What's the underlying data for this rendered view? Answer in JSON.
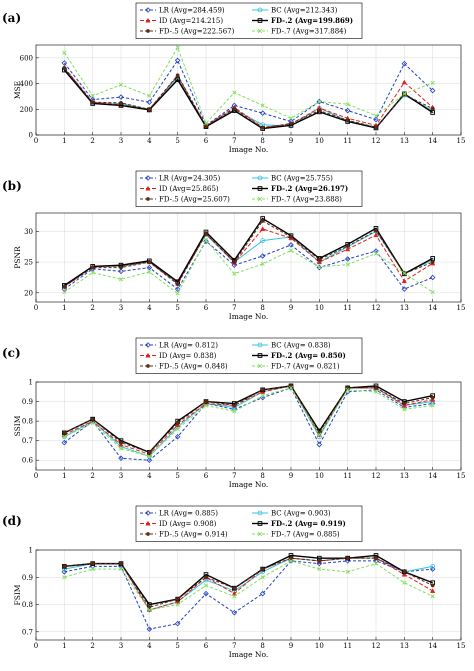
{
  "chart_data": [
    {
      "type": "line",
      "panel": "(a)",
      "ylabel": "MSE",
      "xlabel": "Image No.",
      "xlim": [
        0,
        15
      ],
      "ylim": [
        0,
        700
      ],
      "xticks": [
        0,
        1,
        2,
        3,
        4,
        5,
        6,
        7,
        8,
        9,
        10,
        11,
        12,
        13,
        14,
        15
      ],
      "yticks": [
        0,
        200,
        400,
        600
      ],
      "x": [
        1,
        2,
        3,
        4,
        5,
        6,
        7,
        8,
        9,
        10,
        11,
        12,
        13,
        14
      ],
      "series": [
        {
          "name": "LR",
          "legend": "LR (Avg=284.459)",
          "color": "#1f3fc4",
          "dash": "3,2",
          "marker": "diamond",
          "values": [
            560,
            275,
            295,
            255,
            580,
            75,
            230,
            170,
            105,
            260,
            190,
            120,
            555,
            345
          ]
        },
        {
          "name": "BC",
          "legend": "BC (Avg=212.343)",
          "color": "#33c4e0",
          "dash": "",
          "marker": "circle",
          "values": [
            520,
            250,
            245,
            200,
            450,
            65,
            200,
            80,
            70,
            210,
            110,
            60,
            310,
            190
          ]
        },
        {
          "name": "ID",
          "legend": "ID (Avg=214.215)",
          "color": "#e02020",
          "dash": "4,2",
          "marker": "triangle",
          "values": [
            525,
            255,
            235,
            200,
            460,
            70,
            215,
            60,
            85,
            210,
            130,
            75,
            410,
            215
          ]
        },
        {
          "name": "FD-.2",
          "legend": "FD-.2 (Avg=199.869)",
          "bold": true,
          "color": "#000000",
          "dash": "",
          "marker": "square",
          "values": [
            505,
            245,
            230,
            195,
            430,
            65,
            190,
            50,
            75,
            180,
            105,
            55,
            320,
            175
          ]
        },
        {
          "name": "FD-.5",
          "legend": "FD-.5 (Avg=222.567)",
          "color": "#5a2a12",
          "dash": "3,2",
          "marker": "star",
          "values": [
            520,
            255,
            250,
            200,
            465,
            70,
            205,
            55,
            90,
            190,
            115,
            60,
            315,
            205
          ]
        },
        {
          "name": "FD-.7",
          "legend": "FD-.7 (Avg=317.884)",
          "color": "#7ee05a",
          "dash": "3,2",
          "marker": "x",
          "values": [
            640,
            305,
            390,
            305,
            680,
            90,
            330,
            230,
            130,
            260,
            240,
            150,
            320,
            405
          ]
        }
      ]
    },
    {
      "type": "line",
      "panel": "(b)",
      "ylabel": "PSNR",
      "xlabel": "Image No.",
      "xlim": [
        0,
        15
      ],
      "ylim": [
        18.5,
        33
      ],
      "xticks": [
        0,
        1,
        2,
        3,
        4,
        5,
        6,
        7,
        8,
        9,
        10,
        11,
        12,
        13,
        14,
        15
      ],
      "yticks": [
        20,
        25,
        30
      ],
      "x": [
        1,
        2,
        3,
        4,
        5,
        6,
        7,
        8,
        9,
        10,
        11,
        12,
        13,
        14
      ],
      "series": [
        {
          "name": "LR",
          "legend": "LR (Avg=24.305)",
          "color": "#1f3fc4",
          "dash": "3,2",
          "marker": "diamond",
          "values": [
            20.6,
            23.9,
            23.5,
            24.1,
            20.6,
            28.4,
            24.5,
            26.0,
            27.8,
            24.1,
            25.5,
            26.8,
            20.6,
            22.5
          ]
        },
        {
          "name": "BC",
          "legend": "BC (Avg=25.755)",
          "color": "#33c4e0",
          "dash": "",
          "marker": "circle",
          "values": [
            21.1,
            24.3,
            24.3,
            25.0,
            21.6,
            29.5,
            25.0,
            28.5,
            29.1,
            25.0,
            27.5,
            30.0,
            23.2,
            25.3
          ]
        },
        {
          "name": "ID",
          "legend": "ID (Avg=25.865)",
          "color": "#e02020",
          "dash": "4,2",
          "marker": "triangle",
          "values": [
            21.0,
            24.2,
            24.4,
            25.0,
            21.5,
            29.6,
            24.9,
            30.4,
            28.9,
            25.0,
            27.1,
            29.4,
            21.9,
            24.8
          ]
        },
        {
          "name": "FD-.2",
          "legend": "FD-.2 (Avg=26.197)",
          "bold": true,
          "color": "#000000",
          "dash": "",
          "marker": "square",
          "values": [
            21.2,
            24.3,
            24.5,
            25.2,
            21.8,
            29.9,
            25.3,
            32.1,
            29.3,
            25.6,
            27.9,
            30.5,
            23.1,
            25.6
          ]
        },
        {
          "name": "FD-.5",
          "legend": "FD-.5 (Avg=25.607)",
          "color": "#5a2a12",
          "dash": "3,2",
          "marker": "star",
          "values": [
            21.0,
            24.1,
            24.1,
            25.0,
            21.4,
            29.6,
            25.0,
            31.7,
            29.1,
            25.4,
            27.6,
            30.1,
            23.1,
            25.0
          ]
        },
        {
          "name": "FD-.7",
          "legend": "FD-.7 (Avg=23.888)",
          "color": "#7ee05a",
          "dash": "3,2",
          "marker": "x",
          "values": [
            20.1,
            23.3,
            22.2,
            23.4,
            19.9,
            28.6,
            23.1,
            24.7,
            26.9,
            24.2,
            24.6,
            26.4,
            23.2,
            20.1
          ]
        }
      ]
    },
    {
      "type": "line",
      "panel": "(c)",
      "ylabel": "SSIM",
      "xlabel": "Image No.",
      "xlim": [
        0,
        15
      ],
      "ylim": [
        0.55,
        1.0
      ],
      "xticks": [
        0,
        1,
        2,
        3,
        4,
        5,
        6,
        7,
        8,
        9,
        10,
        11,
        12,
        13,
        14,
        15
      ],
      "yticks": [
        0.6,
        0.7,
        0.8,
        0.9,
        1
      ],
      "x": [
        1,
        2,
        3,
        4,
        5,
        6,
        7,
        8,
        9,
        10,
        11,
        12,
        13,
        14
      ],
      "series": [
        {
          "name": "LR",
          "legend": "LR (Avg= 0.812)",
          "color": "#1f3fc4",
          "dash": "3,2",
          "marker": "diamond",
          "values": [
            0.69,
            0.8,
            0.61,
            0.6,
            0.72,
            0.89,
            0.86,
            0.92,
            0.97,
            0.68,
            0.95,
            0.96,
            0.87,
            0.89
          ]
        },
        {
          "name": "BC",
          "legend": "BC (Avg= 0.838)",
          "color": "#33c4e0",
          "dash": "",
          "marker": "circle",
          "values": [
            0.72,
            0.8,
            0.67,
            0.62,
            0.77,
            0.89,
            0.87,
            0.95,
            0.98,
            0.72,
            0.97,
            0.97,
            0.88,
            0.9
          ]
        },
        {
          "name": "ID",
          "legend": "ID (Avg= 0.838)",
          "color": "#e02020",
          "dash": "4,2",
          "marker": "triangle",
          "values": [
            0.73,
            0.8,
            0.68,
            0.63,
            0.78,
            0.89,
            0.88,
            0.95,
            0.98,
            0.73,
            0.97,
            0.97,
            0.88,
            0.91
          ]
        },
        {
          "name": "FD-.2",
          "legend": "FD-.2 (Avg= 0.850)",
          "bold": true,
          "color": "#000000",
          "dash": "",
          "marker": "square",
          "values": [
            0.74,
            0.81,
            0.7,
            0.64,
            0.8,
            0.9,
            0.89,
            0.96,
            0.98,
            0.75,
            0.97,
            0.98,
            0.9,
            0.93
          ]
        },
        {
          "name": "FD-.5",
          "legend": "FD-.5 (Avg= 0.848)",
          "color": "#5a2a12",
          "dash": "3,2",
          "marker": "star",
          "values": [
            0.74,
            0.81,
            0.69,
            0.64,
            0.79,
            0.9,
            0.88,
            0.96,
            0.98,
            0.74,
            0.97,
            0.97,
            0.89,
            0.92
          ]
        },
        {
          "name": "FD-.7",
          "legend": "FD-.7 (Avg= 0.821)",
          "color": "#7ee05a",
          "dash": "3,2",
          "marker": "x",
          "values": [
            0.72,
            0.79,
            0.66,
            0.62,
            0.76,
            0.88,
            0.85,
            0.93,
            0.97,
            0.73,
            0.96,
            0.95,
            0.86,
            0.88
          ]
        }
      ]
    },
    {
      "type": "line",
      "panel": "(d)",
      "ylabel": "FSIM",
      "xlabel": "Image No.",
      "xlim": [
        0,
        15
      ],
      "ylim": [
        0.67,
        1.0
      ],
      "xticks": [
        0,
        1,
        2,
        3,
        4,
        5,
        6,
        7,
        8,
        9,
        10,
        11,
        12,
        13,
        14,
        15
      ],
      "yticks": [
        0.7,
        0.8,
        0.9,
        1
      ],
      "x": [
        1,
        2,
        3,
        4,
        5,
        6,
        7,
        8,
        9,
        10,
        11,
        12,
        13,
        14
      ],
      "series": [
        {
          "name": "LR",
          "legend": "LR (Avg= 0.885)",
          "color": "#1f3fc4",
          "dash": "3,2",
          "marker": "diamond",
          "values": [
            0.92,
            0.94,
            0.94,
            0.71,
            0.73,
            0.84,
            0.77,
            0.84,
            0.96,
            0.95,
            0.96,
            0.96,
            0.92,
            0.93
          ]
        },
        {
          "name": "BC",
          "legend": "BC (Avg= 0.903)",
          "color": "#33c4e0",
          "dash": "",
          "marker": "circle",
          "values": [
            0.93,
            0.95,
            0.95,
            0.78,
            0.81,
            0.89,
            0.85,
            0.92,
            0.97,
            0.96,
            0.97,
            0.97,
            0.92,
            0.94
          ]
        },
        {
          "name": "ID",
          "legend": "ID (Avg= 0.908)",
          "color": "#e02020",
          "dash": "4,2",
          "marker": "triangle",
          "values": [
            0.94,
            0.95,
            0.95,
            0.78,
            0.81,
            0.9,
            0.84,
            0.93,
            0.97,
            0.96,
            0.97,
            0.97,
            0.91,
            0.85
          ]
        },
        {
          "name": "FD-.2",
          "legend": "FD-.2 (Avg= 0.919)",
          "bold": true,
          "color": "#000000",
          "dash": "",
          "marker": "square",
          "values": [
            0.94,
            0.95,
            0.95,
            0.8,
            0.82,
            0.91,
            0.86,
            0.93,
            0.98,
            0.97,
            0.97,
            0.98,
            0.92,
            0.88
          ]
        },
        {
          "name": "FD-.5",
          "legend": "FD-.5 (Avg= 0.914)",
          "color": "#5a2a12",
          "dash": "3,2",
          "marker": "star",
          "values": [
            0.94,
            0.95,
            0.95,
            0.79,
            0.82,
            0.9,
            0.86,
            0.93,
            0.97,
            0.96,
            0.97,
            0.97,
            0.92,
            0.87
          ]
        },
        {
          "name": "FD-.7",
          "legend": "FD-.7 (Avg= 0.885)",
          "color": "#7ee05a",
          "dash": "3,2",
          "marker": "x",
          "values": [
            0.9,
            0.93,
            0.93,
            0.78,
            0.8,
            0.87,
            0.83,
            0.9,
            0.96,
            0.93,
            0.92,
            0.95,
            0.88,
            0.83
          ]
        }
      ]
    }
  ]
}
